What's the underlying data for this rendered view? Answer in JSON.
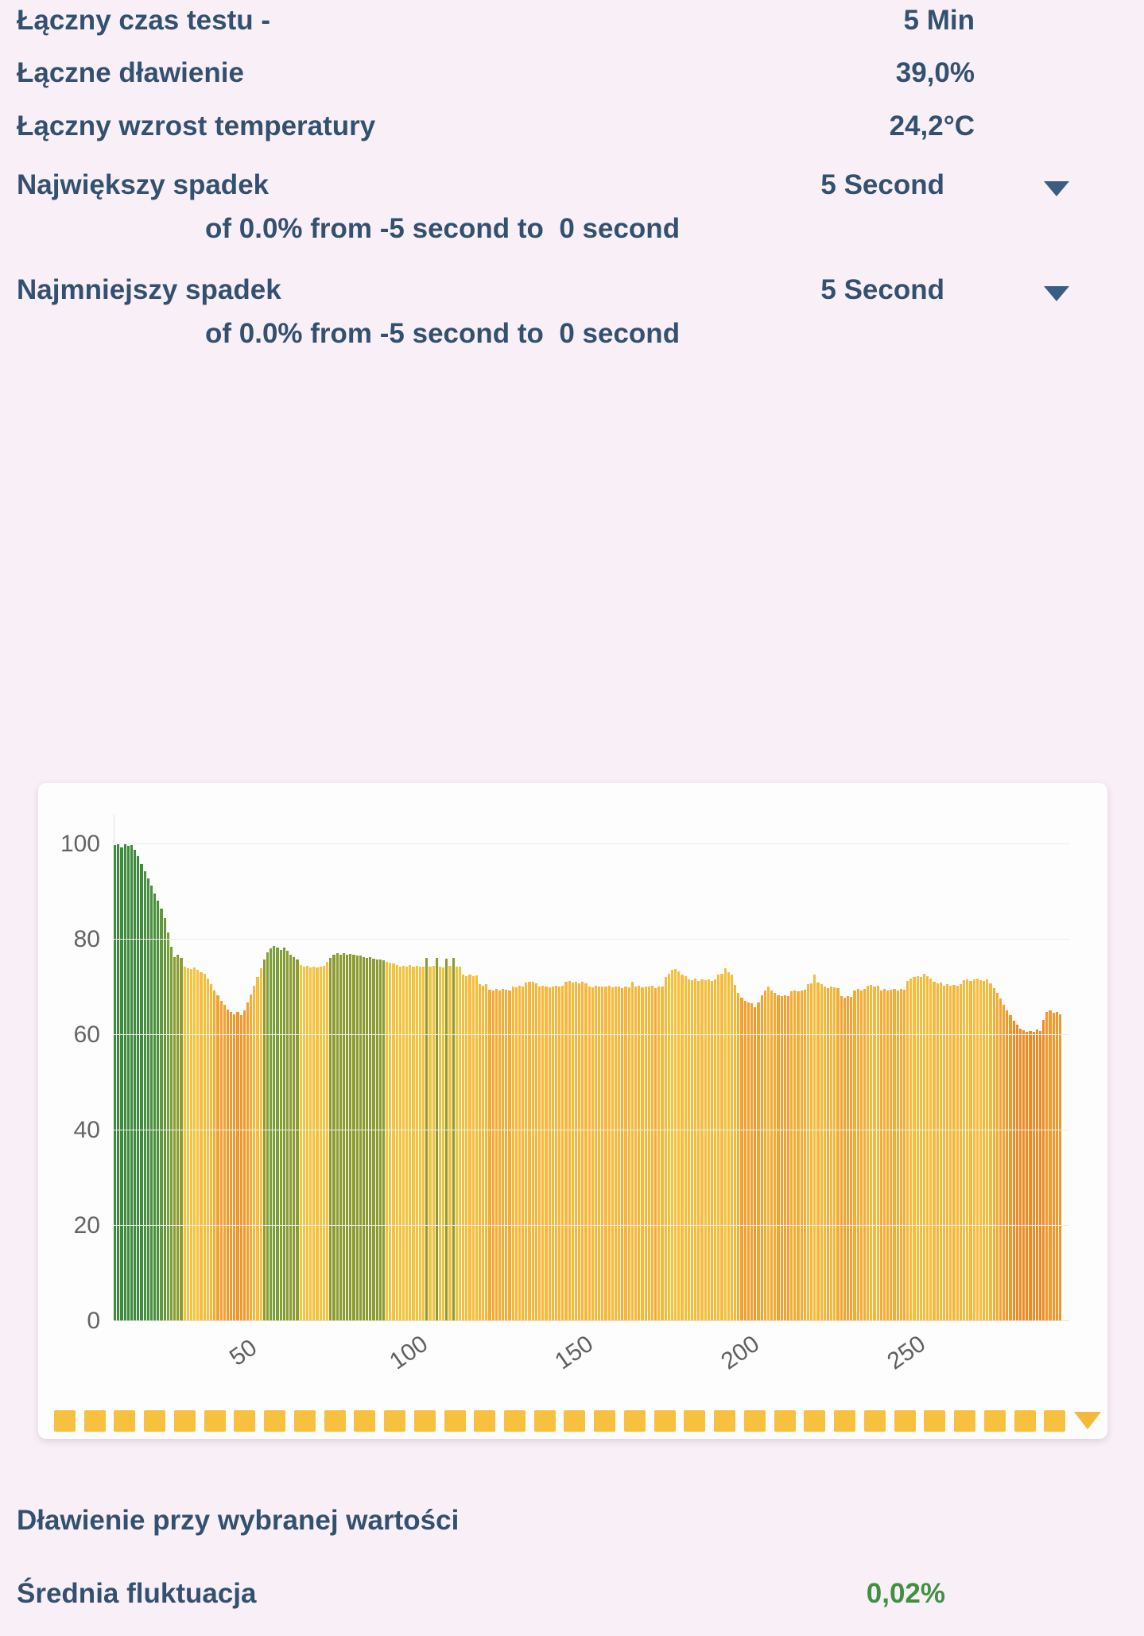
{
  "page": {
    "background": "#f9f0f7",
    "text_color": "#33516f"
  },
  "stats": [
    {
      "label": "Łączny czas testu -",
      "value": "5 Min"
    },
    {
      "label": "Łączne dławienie",
      "value": "39,0%"
    },
    {
      "label": "Łączny wzrost temperatury",
      "value": "24,2°C"
    }
  ],
  "drops": [
    {
      "label": "Największy spadek",
      "period": "5 Second",
      "detail": "of 0.0% from -5 second to  0 second"
    },
    {
      "label": "Najmniejszy spadek",
      "period": "5 Second",
      "detail": "of 0.0% from -5 second to  0 second"
    }
  ],
  "chart_data": {
    "type": "bar",
    "title": "",
    "xlabel": "",
    "ylabel": "",
    "x_start": 11,
    "x_step": 1,
    "x_ticks": [
      50,
      100,
      150,
      200,
      250
    ],
    "y_ticks": [
      0,
      20,
      40,
      60,
      80,
      100
    ],
    "ylim": [
      0,
      106
    ],
    "grid": true,
    "values": [
      99.8,
      100,
      99.4,
      100,
      99.6,
      99.8,
      98.9,
      97.5,
      95.8,
      94.4,
      92.9,
      91.3,
      89.7,
      88.2,
      86.5,
      84.5,
      81.5,
      78.5,
      76.4,
      76.8,
      76.2,
      74.3,
      74,
      73.8,
      74.1,
      73.6,
      73.2,
      72.8,
      71.8,
      70.6,
      69.4,
      68.3,
      67.2,
      66.3,
      65.4,
      64.8,
      64.3,
      64.9,
      64.2,
      65.1,
      66.8,
      68.5,
      70.3,
      72.2,
      74,
      75.8,
      77.4,
      78.2,
      78.6,
      78.3,
      77.9,
      78.4,
      77.6,
      76.8,
      76.3,
      75.9,
      74.6,
      74.3,
      74.5,
      74.2,
      74.4,
      74.1,
      74.3,
      74.5,
      75.4,
      76.2,
      76.8,
      77.2,
      76.9,
      77.1,
      76.9,
      77,
      76.8,
      76.6,
      76.7,
      76.4,
      76.2,
      76.3,
      76,
      75.8,
      75.9,
      75.6,
      75.4,
      75.2,
      75,
      74.6,
      74.4,
      74.5,
      74.3,
      74.6,
      74.4,
      74.5,
      74.3,
      74.4,
      76.1,
      74.3,
      74.5,
      76.2,
      74.4,
      74.2,
      76,
      74.5,
      76.1,
      74.3,
      74.4,
      72.6,
      72.4,
      72.7,
      72.3,
      72.5,
      70.6,
      70.4,
      70.7,
      69.5,
      69.3,
      69.6,
      69.4,
      69.7,
      69.5,
      69.3,
      70.2,
      70,
      70.3,
      70.1,
      71,
      71.2,
      71.1,
      70.9,
      70.2,
      70.3,
      70.1,
      70,
      70.2,
      70.4,
      70.1,
      70.3,
      71.1,
      71.3,
      71,
      71.2,
      70.9,
      71.1,
      70.8,
      70.2,
      70,
      70.3,
      70.1,
      70.2,
      70.1,
      70.3,
      70,
      70.2,
      70.1,
      69.9,
      70.2,
      70,
      71.2,
      70.1,
      70.3,
      70,
      70.2,
      70.1,
      70.3,
      69.9,
      70.1,
      70.2,
      72.1,
      72.8,
      73.6,
      73.9,
      73.4,
      72.7,
      72.3,
      71.7,
      71.5,
      71.8,
      71.4,
      71.6,
      71.5,
      71.7,
      71.4,
      71.6,
      72.6,
      72.8,
      74,
      73.2,
      72.7,
      70.5,
      68.9,
      67.9,
      67.2,
      66.9,
      66.6,
      65.9,
      66.8,
      68.4,
      69.3,
      70.1,
      69.4,
      68.9,
      68.3,
      68.1,
      68.4,
      68.2,
      69.2,
      69.4,
      69.1,
      69.3,
      69.5,
      70.6,
      70.9,
      72.7,
      71,
      70.7,
      70.1,
      69.9,
      70.2,
      70,
      69.8,
      68.1,
      67.9,
      68.2,
      68,
      69.3,
      69.6,
      69.4,
      69.7,
      70.3,
      70.5,
      70.2,
      70.4,
      69.4,
      69.6,
      69.3,
      69.5,
      69.7,
      69.4,
      69.6,
      69.5,
      71.4,
      71.8,
      72.2,
      72.4,
      72.1,
      72.8,
      72.3,
      71.9,
      71.1,
      70.9,
      71,
      70.4,
      70.6,
      70.3,
      70.5,
      70.4,
      70.6,
      71.5,
      71.7,
      71.4,
      71.6,
      71.8,
      71.5,
      71.3,
      71.6,
      70.8,
      69.9,
      68.8,
      67.6,
      66.4,
      65.2,
      64.1,
      63,
      62.1,
      61.4,
      61,
      60.7,
      60.9,
      60.6,
      61.1,
      60.8,
      63.2,
      64.8,
      65.2,
      64.6,
      64.9,
      64.3
    ],
    "color_scale": [
      {
        "min": 95,
        "color": "#3e8a3f"
      },
      {
        "min": 88,
        "color": "#4b8f40"
      },
      {
        "min": 82,
        "color": "#62973d"
      },
      {
        "min": 78,
        "color": "#79a039"
      },
      {
        "min": 75.5,
        "color": "#8c9c33"
      },
      {
        "min": 73.5,
        "color": "#f2c33f"
      },
      {
        "min": 71.5,
        "color": "#f5bd3c"
      },
      {
        "min": 70.0,
        "color": "#f6b83c"
      },
      {
        "min": 68.5,
        "color": "#f3ac36"
      },
      {
        "min": 66.0,
        "color": "#f1a232"
      },
      {
        "min": 63.5,
        "color": "#ef982e"
      },
      {
        "min": 0,
        "color": "#ed8b27"
      }
    ]
  },
  "slider": {
    "dash_count": 34,
    "dash_color": "#f7c13f",
    "arrow_color": "#f4b83a"
  },
  "footer": {
    "title": "Dławienie przy wybranej wartości",
    "label": "Średnia fluktuacja",
    "value": "0,02%",
    "value_color": "#3f9142"
  }
}
